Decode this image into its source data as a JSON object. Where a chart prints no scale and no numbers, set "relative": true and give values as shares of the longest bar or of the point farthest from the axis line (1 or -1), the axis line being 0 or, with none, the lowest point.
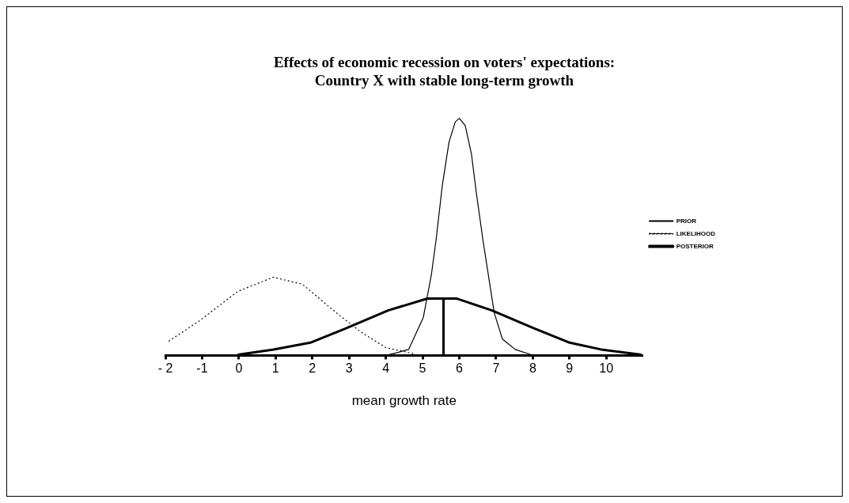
{
  "chart_data": {
    "type": "line",
    "title": [
      "Effects of economic recession on voters' expectations:",
      "Country X with stable long-term growth"
    ],
    "xlabel": "mean growth rate",
    "relative": true,
    "xlim": [
      -2,
      11
    ],
    "xticks": [
      {
        "value": -2,
        "label": "- 2"
      },
      -1,
      0,
      1,
      2,
      3,
      4,
      5,
      6,
      7,
      8,
      9,
      10
    ],
    "legend": "right",
    "grid": false,
    "marker": "none",
    "series": [
      {
        "name": "PRIOR",
        "color": "#000000",
        "line_style": "solid",
        "x": [
          4.0,
          4.27,
          4.62,
          5.02,
          5.24,
          5.37,
          5.54,
          5.72,
          5.89,
          6.0,
          6.16,
          6.33,
          6.46,
          6.64,
          6.82,
          6.95,
          7.17,
          7.52,
          7.96
        ],
        "values": [
          0,
          0.01,
          0.025,
          0.16,
          0.34,
          0.49,
          0.72,
          0.9,
          0.985,
          1,
          0.97,
          0.85,
          0.69,
          0.49,
          0.31,
          0.18,
          0.07,
          0.025,
          0.003
        ]
      },
      {
        "name": "LIKELIHOOD",
        "color": "#000000",
        "line_style": "dotted",
        "x": [
          -1.91,
          -1.08,
          -0.03,
          0.94,
          1.73,
          2.69,
          3.31,
          4.0,
          4.8
        ],
        "values": [
          0.06,
          0.145,
          0.27,
          0.33,
          0.3,
          0.175,
          0.1,
          0.033,
          0.006
        ]
      },
      {
        "name": "POSTERIOR",
        "color": "#000000",
        "line_style": "solid",
        "x": [
          -0.03,
          0.94,
          1.97,
          2.93,
          4.07,
          5.13,
          5.92,
          6.88,
          8.02,
          8.98,
          9.86,
          10.96
        ],
        "values": [
          0.003,
          0.025,
          0.055,
          0.115,
          0.19,
          0.24,
          0.24,
          0.19,
          0.115,
          0.055,
          0.025,
          0.003
        ]
      },
      {
        "color": "#000000",
        "line_style": "solid",
        "x": [
          5.57,
          5.57
        ],
        "values": [
          0,
          0.24
        ]
      }
    ]
  }
}
